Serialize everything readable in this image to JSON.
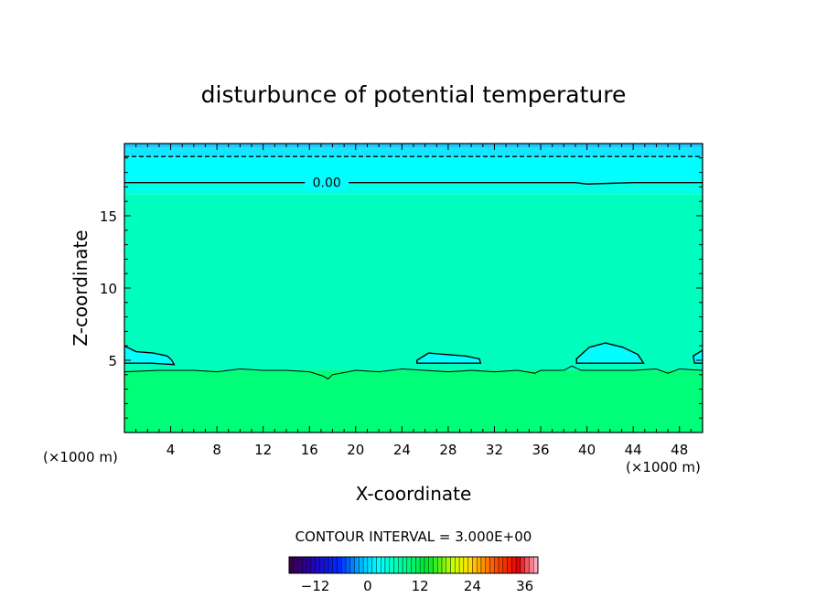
{
  "chart_data": {
    "type": "heatmap",
    "title": "disturbunce of potential temperature",
    "xlabel": "X-coordinate",
    "ylabel": "Z-coordinate",
    "x_unit_left": "(×1000 m)",
    "x_unit_right": "(×1000 m)",
    "xlim": [
      0,
      50
    ],
    "ylim": [
      0,
      20
    ],
    "x_ticks": [
      4,
      8,
      12,
      16,
      20,
      24,
      28,
      32,
      36,
      40,
      44,
      48
    ],
    "y_ticks": [
      5,
      10,
      15
    ],
    "contour_label": "0.00",
    "contour_interval_text": "CONTOUR INTERVAL = 3.000E+00",
    "colorbar": {
      "min": -18,
      "max": 39,
      "ticks": [
        -12,
        0,
        12,
        24,
        36
      ],
      "tick_labels": [
        "−12",
        "0",
        "12",
        "24",
        "36"
      ]
    },
    "bands": [
      {
        "z0": 19.7,
        "z1": 20.0,
        "color": "#1ec8ff"
      },
      {
        "z0": 19.0,
        "z1": 19.7,
        "color": "#14e6ff"
      },
      {
        "z0": 17.3,
        "z1": 19.0,
        "color": "#00ffff"
      },
      {
        "z0": 16.5,
        "z1": 17.3,
        "color": "#00ffe6"
      },
      {
        "z0": 4.3,
        "z1": 16.5,
        "color": "#00ffbe"
      },
      {
        "z0": 0.0,
        "z1": 4.3,
        "color": "#00ff78"
      }
    ],
    "contours": [
      {
        "kind": "solid",
        "level": 0.0,
        "x": [
          0,
          15,
          31,
          39,
          40,
          44,
          50
        ],
        "z": [
          17.3,
          17.3,
          17.3,
          17.3,
          17.2,
          17.3,
          17.3
        ]
      },
      {
        "kind": "dashed",
        "level": -3.0,
        "x": [
          0,
          50
        ],
        "z": [
          19.1,
          19.1
        ]
      },
      {
        "kind": "closed",
        "level": 0.0,
        "x": [
          0,
          1.0,
          2.5,
          3.7,
          4.1,
          4.3,
          2.3,
          0
        ],
        "z": [
          6.0,
          5.6,
          5.5,
          5.3,
          5.0,
          4.7,
          4.8,
          4.8
        ]
      },
      {
        "kind": "closed",
        "level": 0.0,
        "x": [
          25.3,
          26.3,
          27.8,
          29.5,
          30.7,
          30.8,
          28.5,
          25.3,
          25.3
        ],
        "z": [
          5.0,
          5.5,
          5.4,
          5.3,
          5.1,
          4.8,
          4.8,
          4.8,
          5.0
        ]
      },
      {
        "kind": "closed",
        "level": 0.0,
        "x": [
          39.1,
          40.2,
          41.6,
          43.1,
          44.4,
          44.9,
          42.0,
          39.1,
          39.1
        ],
        "z": [
          5.1,
          5.9,
          6.2,
          5.9,
          5.4,
          4.8,
          4.8,
          4.8,
          5.1
        ]
      },
      {
        "kind": "closed",
        "level": 0.0,
        "x": [
          50.0,
          49.2,
          49.3,
          50.0
        ],
        "z": [
          5.7,
          5.3,
          4.8,
          4.8
        ]
      },
      {
        "kind": "ragged",
        "level": 3.0,
        "x": [
          0,
          3,
          6,
          8,
          10,
          12,
          14,
          16,
          17.2,
          17.6,
          18,
          20,
          22,
          24,
          26,
          28,
          30,
          32,
          34,
          35.5,
          36,
          38,
          38.7,
          39.5,
          42,
          44,
          46,
          47,
          48,
          50
        ],
        "z": [
          4.2,
          4.3,
          4.3,
          4.2,
          4.4,
          4.3,
          4.3,
          4.2,
          3.9,
          3.7,
          4.0,
          4.3,
          4.2,
          4.4,
          4.3,
          4.2,
          4.3,
          4.2,
          4.3,
          4.1,
          4.3,
          4.3,
          4.6,
          4.3,
          4.3,
          4.3,
          4.4,
          4.1,
          4.4,
          4.3
        ]
      }
    ]
  }
}
